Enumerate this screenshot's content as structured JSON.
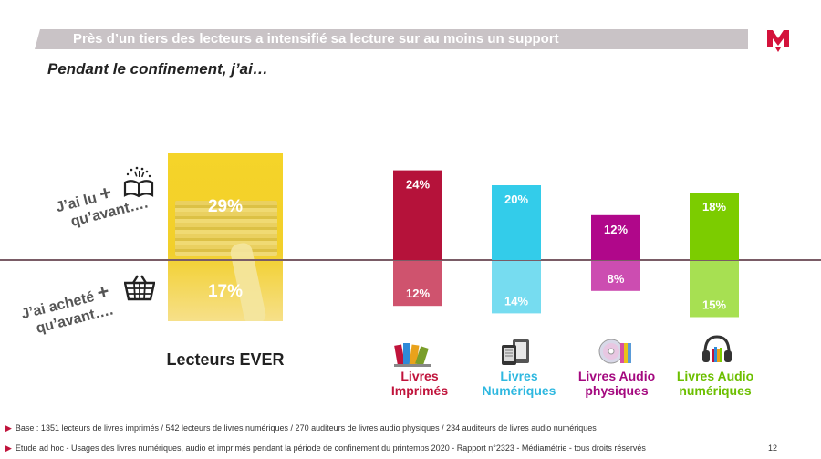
{
  "header": {
    "title": "Près d’un tiers des lecteurs a intensifié sa lecture sur au moins un support"
  },
  "subtitle": "Pendant le confinement, j’ai…",
  "side_labels": {
    "read": {
      "line1": "J’ai lu",
      "plus": "+",
      "line2": "qu’avant…."
    },
    "bought": {
      "line1": "J’ai acheté",
      "plus": "+",
      "line2": "qu’avant…."
    }
  },
  "ever": {
    "label": "Lecteurs EVER",
    "read_pct": "29%",
    "bought_pct": "17%"
  },
  "chart_data": {
    "type": "bar",
    "categories": [
      "Livres Imprimés",
      "Livres Numériques",
      "Livres Audio physiques",
      "Livres Audio numériques"
    ],
    "series": [
      {
        "name": "J’ai lu + qu’avant….",
        "values": [
          24,
          20,
          12,
          18
        ]
      },
      {
        "name": "J’ai acheté + qu’avant….",
        "values": [
          12,
          14,
          8,
          15
        ]
      }
    ],
    "colors": {
      "read": [
        "#b5123a",
        "#33ccea",
        "#b0078a",
        "#7ccc00"
      ],
      "bought": [
        "#cf536e",
        "#76dcf0",
        "#cc4db1",
        "#a7e052"
      ]
    },
    "label_colors": [
      "#c0133b",
      "#2fb8e0",
      "#a4087f",
      "#6cbf00"
    ],
    "category_labels": [
      "Livres\nImprimés",
      "Livres\nNumériques",
      "Livres Audio\nphysiques",
      "Livres Audio\nnumériques"
    ]
  },
  "icons": {
    "read": "open-book-icon",
    "bought": "shopping-basket-icon",
    "categories": [
      "printed-books-icon",
      "ereader-icon",
      "cd-icon",
      "headphones-icon"
    ]
  },
  "footnotes": [
    "Base : 1351 lecteurs de livres imprimés / 542 lecteurs de livres numériques / 270 auditeurs de livres audio physiques / 234 auditeurs de livres audio numériques",
    "Etude ad hoc - Usages des livres numériques, audio et imprimés pendant la période de confinement du printemps 2020 - Rapport n°2323 - Médiamétrie - tous droits réservés"
  ],
  "page_number": "12"
}
